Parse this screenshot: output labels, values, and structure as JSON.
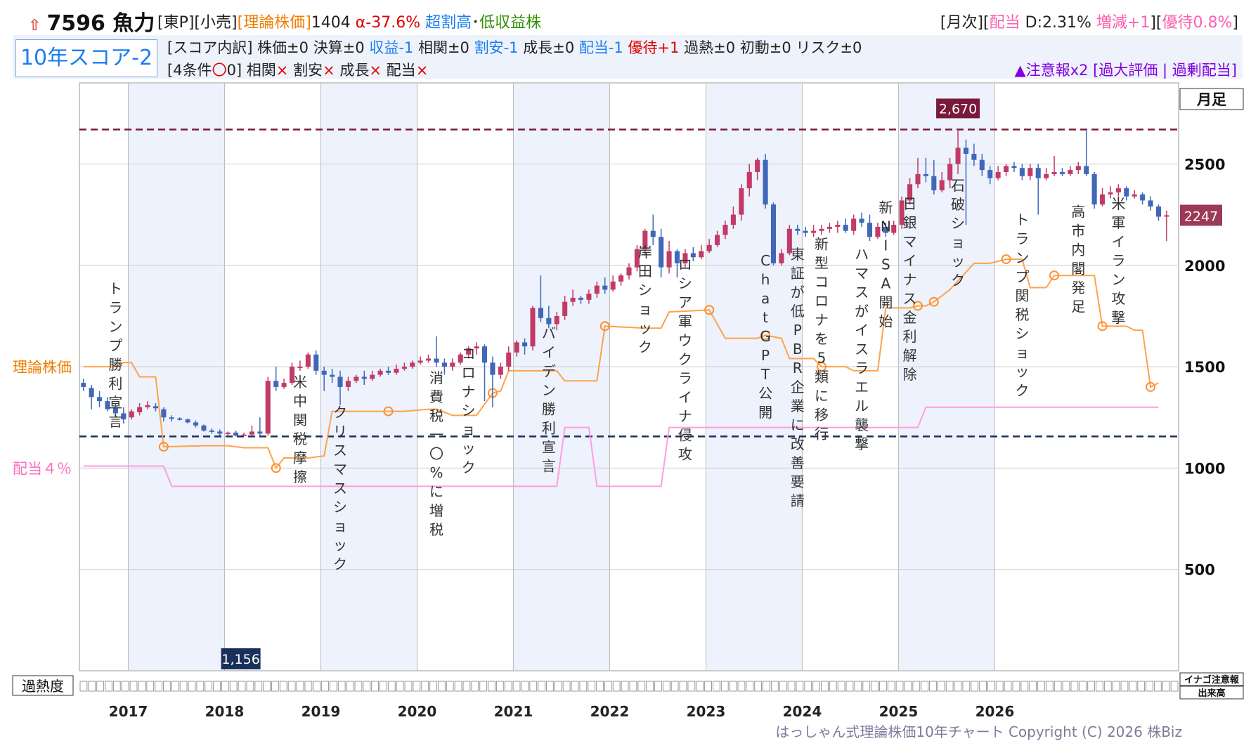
{
  "header": {
    "title": "7596 魚力",
    "arrow_icon": "up-arrow-icon",
    "market": "[東P][小売]",
    "theory_tag": "[理論株価]",
    "theory_value": "1404",
    "alpha": "α-37.6%",
    "valuation": "超割高",
    "sep": "･",
    "profit": "低収益株",
    "right_prefix": "[月次][",
    "right_div": "配当",
    "right_d": " D:2.31% ",
    "right_inc": "増減+1",
    "right_mid": "][",
    "right_yutai": "優待0.8%",
    "right_end": "]"
  },
  "score": {
    "box_label": "10年スコア-2",
    "l1_a": "[スコア内訳] 株価±0 決算±0 ",
    "l1_b": "収益-1",
    "l1_c": " 相関±0 ",
    "l1_d": "割安-1",
    "l1_e": " 成長±0 ",
    "l1_f": "配当-1",
    "l1_g": " ",
    "l1_h": "優待+1",
    "l1_i": " 過熱±0 初動±0 リスク±0",
    "l2_a": "[4条件",
    "l2_circle": "〇",
    "l2_b": "0] 相関",
    "l2_x1": "×",
    "l2_c": " 割安",
    "l2_x2": "×",
    "l2_d": " 成長",
    "l2_x3": "×",
    "l2_e": " 配当",
    "l2_x4": "×",
    "warn_a": "▲注意報x2",
    "warn_b": " [過大評価 | 過剰配当]"
  },
  "chart_data": {
    "type": "candlestick",
    "period_label": "月足",
    "x_labels": [
      "2017",
      "2018",
      "2019",
      "2020",
      "2021",
      "2022",
      "2023",
      "2024",
      "2025",
      "2026"
    ],
    "y_ticks": [
      500,
      1000,
      1500,
      2000,
      2500
    ],
    "ylim": [
      0,
      2900
    ],
    "high_label": "2,670",
    "low_label": "1,156",
    "current_label": "2247",
    "high": 2670,
    "low": 1156,
    "current": 2247,
    "left_labels": {
      "theory": "理論株価",
      "dividend": "配当４％"
    },
    "heat_label": "過熱度",
    "heat_cells": 132,
    "right_labels": [
      "イナゴ注意報",
      "出来高"
    ],
    "footer": "はっしゃん式理論株価10年チャート Copyright (C) 2026 株Biz",
    "theory_series": [
      [
        0,
        1500
      ],
      [
        4,
        1500
      ],
      [
        5,
        1520
      ],
      [
        6,
        1520
      ],
      [
        7,
        1450
      ],
      [
        9,
        1450
      ],
      [
        10,
        1105
      ],
      [
        15,
        1110
      ],
      [
        18,
        1110
      ],
      [
        20,
        1100
      ],
      [
        23,
        1100
      ],
      [
        24,
        1000
      ],
      [
        25,
        1050
      ],
      [
        28,
        1050
      ],
      [
        30,
        1060
      ],
      [
        31,
        1280
      ],
      [
        35,
        1280
      ],
      [
        38,
        1280
      ],
      [
        40,
        1280
      ],
      [
        43,
        1290
      ],
      [
        44,
        1290
      ],
      [
        46,
        1260
      ],
      [
        49,
        1260
      ],
      [
        51,
        1370
      ],
      [
        52,
        1380
      ],
      [
        53,
        1480
      ],
      [
        59,
        1480
      ],
      [
        60,
        1430
      ],
      [
        64,
        1430
      ],
      [
        65,
        1700
      ],
      [
        70,
        1690
      ],
      [
        72,
        1690
      ],
      [
        73,
        1770
      ],
      [
        78,
        1780
      ],
      [
        80,
        1640
      ],
      [
        84,
        1640
      ],
      [
        85,
        1655
      ],
      [
        87,
        1640
      ],
      [
        88,
        1540
      ],
      [
        91,
        1540
      ],
      [
        92,
        1500
      ],
      [
        95,
        1500
      ],
      [
        96,
        1480
      ],
      [
        99,
        1480
      ],
      [
        100,
        1790
      ],
      [
        103,
        1790
      ],
      [
        104,
        1800
      ],
      [
        105,
        1800
      ],
      [
        106,
        1820
      ],
      [
        108,
        1880
      ],
      [
        111,
        2010
      ],
      [
        113,
        2010
      ],
      [
        115,
        2030
      ],
      [
        117,
        2030
      ],
      [
        118,
        1890
      ],
      [
        120,
        1890
      ],
      [
        121,
        1950
      ],
      [
        123,
        1950
      ],
      [
        124,
        1950
      ],
      [
        126,
        1950
      ],
      [
        127,
        1700
      ],
      [
        130,
        1700
      ],
      [
        131,
        1680
      ],
      [
        132,
        1680
      ],
      [
        133,
        1400
      ],
      [
        134,
        1420
      ]
    ],
    "theory_markers": [
      [
        10,
        1105
      ],
      [
        24,
        1000
      ],
      [
        38,
        1280
      ],
      [
        51,
        1370
      ],
      [
        65,
        1700
      ],
      [
        78,
        1780
      ],
      [
        85,
        1655
      ],
      [
        92,
        1500
      ],
      [
        104,
        1800
      ],
      [
        106,
        1820
      ],
      [
        115,
        2030
      ],
      [
        121,
        1950
      ],
      [
        127,
        1700
      ],
      [
        133,
        1400
      ]
    ],
    "dividend_series": [
      [
        0,
        1010
      ],
      [
        10,
        1010
      ],
      [
        11,
        910
      ],
      [
        59,
        910
      ],
      [
        60,
        1200
      ],
      [
        63,
        1200
      ],
      [
        64,
        910
      ],
      [
        72,
        910
      ],
      [
        73,
        1200
      ],
      [
        104,
        1200
      ],
      [
        105,
        1300
      ],
      [
        134,
        1300
      ]
    ],
    "line_high": 2670,
    "line_low": 1156,
    "events": [
      {
        "m": 4,
        "t": "トランプ勝利宣言",
        "top": 1860
      },
      {
        "m": 27,
        "t": "米中関税摩擦",
        "top": 1400
      },
      {
        "m": 32,
        "t": "クリスマスショック",
        "top": 1250
      },
      {
        "m": 44,
        "t": "消費税一〇%に増税",
        "top": 1420
      },
      {
        "m": 48,
        "t": "コロナショック",
        "top": 1540
      },
      {
        "m": 58,
        "t": "バイデン勝利宣言",
        "top": 1640
      },
      {
        "m": 70,
        "t": "岸田ショック",
        "top": 2040
      },
      {
        "m": 75,
        "t": "ロシア軍ウクライナ侵攻",
        "top": 1980
      },
      {
        "m": 85,
        "t": "ChatGPT公開",
        "top": 2000
      },
      {
        "m": 89,
        "t": "東証が低PBR企業に改善要請",
        "top": 2030
      },
      {
        "m": 92,
        "t": "新型コロナを5類に移行",
        "top": 2080
      },
      {
        "m": 97,
        "t": "ハマスがイスラエル襲撃",
        "top": 2030
      },
      {
        "m": 100,
        "t": "新NISA開始",
        "top": 2260
      },
      {
        "m": 103,
        "t": "日銀マイナス金利解除",
        "top": 2280
      },
      {
        "m": 109,
        "t": "石破ショック",
        "top": 2370
      },
      {
        "m": 117,
        "t": "トランプ関税ショック",
        "top": 2200
      },
      {
        "m": 124,
        "t": "高市内閣発足",
        "top": 2240
      },
      {
        "m": 129,
        "t": "米軍イラン攻撃",
        "top": 2280
      }
    ],
    "ohlc": [
      [
        1420,
        1400,
        1440,
        1380
      ],
      [
        1395,
        1350,
        1410,
        1290
      ],
      [
        1350,
        1330,
        1380,
        1300
      ],
      [
        1330,
        1290,
        1350,
        1280
      ],
      [
        1300,
        1270,
        1320,
        1250
      ],
      [
        1270,
        1240,
        1300,
        1220
      ],
      [
        1250,
        1280,
        1290,
        1240
      ],
      [
        1275,
        1300,
        1320,
        1260
      ],
      [
        1300,
        1310,
        1330,
        1290
      ],
      [
        1305,
        1295,
        1320,
        1280
      ],
      [
        1290,
        1250,
        1300,
        1230
      ],
      [
        1250,
        1245,
        1260,
        1230
      ],
      [
        1245,
        1240,
        1250,
        1235
      ],
      [
        1240,
        1225,
        1245,
        1220
      ],
      [
        1225,
        1210,
        1235,
        1200
      ],
      [
        1210,
        1185,
        1215,
        1180
      ],
      [
        1185,
        1180,
        1195,
        1170
      ],
      [
        1180,
        1170,
        1190,
        1160
      ],
      [
        1170,
        1175,
        1180,
        1160
      ],
      [
        1175,
        1160,
        1185,
        1156
      ],
      [
        1160,
        1165,
        1175,
        1160
      ],
      [
        1165,
        1180,
        1210,
        1160
      ],
      [
        1180,
        1170,
        1250,
        1160
      ],
      [
        1170,
        1430,
        1450,
        1160
      ],
      [
        1430,
        1400,
        1500,
        1380
      ],
      [
        1400,
        1420,
        1440,
        1390
      ],
      [
        1420,
        1500,
        1520,
        1410
      ],
      [
        1500,
        1500,
        1530,
        1480
      ],
      [
        1500,
        1560,
        1570,
        1490
      ],
      [
        1560,
        1480,
        1580,
        1460
      ],
      [
        1480,
        1460,
        1500,
        1380
      ],
      [
        1460,
        1450,
        1490,
        1420
      ],
      [
        1450,
        1400,
        1480,
        1310
      ],
      [
        1400,
        1430,
        1450,
        1380
      ],
      [
        1430,
        1450,
        1460,
        1420
      ],
      [
        1450,
        1440,
        1480,
        1410
      ],
      [
        1440,
        1460,
        1480,
        1430
      ],
      [
        1460,
        1480,
        1490,
        1450
      ],
      [
        1480,
        1470,
        1500,
        1460
      ],
      [
        1470,
        1490,
        1510,
        1460
      ],
      [
        1490,
        1500,
        1520,
        1480
      ],
      [
        1500,
        1520,
        1530,
        1490
      ],
      [
        1520,
        1530,
        1550,
        1510
      ],
      [
        1530,
        1540,
        1560,
        1520
      ],
      [
        1540,
        1520,
        1650,
        1500
      ],
      [
        1520,
        1500,
        1540,
        1460
      ],
      [
        1500,
        1520,
        1540,
        1480
      ],
      [
        1520,
        1560,
        1570,
        1510
      ],
      [
        1560,
        1590,
        1600,
        1540
      ],
      [
        1590,
        1600,
        1620,
        1560
      ],
      [
        1600,
        1520,
        1610,
        1330
      ],
      [
        1520,
        1460,
        1550,
        1300
      ],
      [
        1460,
        1500,
        1520,
        1440
      ],
      [
        1500,
        1570,
        1600,
        1480
      ],
      [
        1570,
        1620,
        1630,
        1550
      ],
      [
        1620,
        1600,
        1640,
        1560
      ],
      [
        1600,
        1790,
        1800,
        1580
      ],
      [
        1790,
        1740,
        1950,
        1720
      ],
      [
        1740,
        1710,
        1800,
        1690
      ],
      [
        1710,
        1750,
        1770,
        1680
      ],
      [
        1750,
        1820,
        1850,
        1730
      ],
      [
        1820,
        1840,
        1880,
        1800
      ],
      [
        1840,
        1830,
        1850,
        1810
      ],
      [
        1830,
        1860,
        1880,
        1810
      ],
      [
        1860,
        1900,
        1920,
        1840
      ],
      [
        1900,
        1880,
        1940,
        1860
      ],
      [
        1880,
        1920,
        1950,
        1870
      ],
      [
        1920,
        1950,
        1960,
        1900
      ],
      [
        1950,
        1990,
        2010,
        1930
      ],
      [
        1990,
        2080,
        2100,
        1970
      ],
      [
        2080,
        2170,
        2180,
        2050
      ],
      [
        2170,
        2140,
        2250,
        2100
      ],
      [
        2140,
        1990,
        2180,
        1940
      ],
      [
        1990,
        2070,
        2120,
        1960
      ],
      [
        2070,
        2010,
        2080,
        1940
      ],
      [
        2010,
        2060,
        2080,
        1990
      ],
      [
        2060,
        2040,
        2090,
        2020
      ],
      [
        2040,
        2070,
        2100,
        2030
      ],
      [
        2070,
        2100,
        2130,
        2060
      ],
      [
        2100,
        2150,
        2170,
        2090
      ],
      [
        2150,
        2200,
        2220,
        2130
      ],
      [
        2200,
        2250,
        2290,
        2180
      ],
      [
        2250,
        2380,
        2400,
        2220
      ],
      [
        2380,
        2460,
        2500,
        2340
      ],
      [
        2460,
        2520,
        2530,
        2420
      ],
      [
        2520,
        2300,
        2550,
        2280
      ],
      [
        2300,
        2010,
        2310,
        2000
      ],
      [
        2010,
        2060,
        2080,
        2000
      ],
      [
        2060,
        2180,
        2200,
        2050
      ],
      [
        2180,
        2170,
        2200,
        2150
      ],
      [
        2170,
        2160,
        2190,
        2140
      ],
      [
        2160,
        2170,
        2200,
        2140
      ],
      [
        2170,
        2180,
        2200,
        2150
      ],
      [
        2180,
        2190,
        2210,
        2160
      ],
      [
        2190,
        2200,
        2220,
        2160
      ],
      [
        2200,
        2170,
        2230,
        2160
      ],
      [
        2170,
        2230,
        2250,
        2150
      ],
      [
        2230,
        2210,
        2260,
        2190
      ],
      [
        2210,
        2140,
        2250,
        2120
      ],
      [
        2140,
        2190,
        2210,
        2130
      ],
      [
        2190,
        2160,
        2210,
        2140
      ],
      [
        2160,
        2200,
        2220,
        2150
      ],
      [
        2200,
        2320,
        2340,
        2180
      ],
      [
        2320,
        2400,
        2430,
        2300
      ],
      [
        2400,
        2450,
        2530,
        2380
      ],
      [
        2450,
        2440,
        2530,
        2410
      ],
      [
        2440,
        2370,
        2520,
        2350
      ],
      [
        2370,
        2420,
        2460,
        2360
      ],
      [
        2420,
        2500,
        2530,
        2380
      ],
      [
        2500,
        2580,
        2670,
        2450
      ],
      [
        2580,
        2550,
        2620,
        2200
      ],
      [
        2550,
        2520,
        2600,
        2490
      ],
      [
        2520,
        2470,
        2550,
        2440
      ],
      [
        2470,
        2430,
        2490,
        2400
      ],
      [
        2430,
        2460,
        2490,
        2420
      ],
      [
        2460,
        2490,
        2500,
        2440
      ],
      [
        2490,
        2480,
        2510,
        2460
      ],
      [
        2480,
        2440,
        2500,
        2420
      ],
      [
        2440,
        2480,
        2500,
        2420
      ],
      [
        2480,
        2430,
        2500,
        2250
      ],
      [
        2430,
        2450,
        2480,
        2420
      ],
      [
        2450,
        2460,
        2540,
        2440
      ],
      [
        2460,
        2450,
        2480,
        2440
      ],
      [
        2450,
        2470,
        2490,
        2440
      ],
      [
        2470,
        2490,
        2510,
        2450
      ],
      [
        2490,
        2450,
        2670,
        2440
      ],
      [
        2450,
        2300,
        2460,
        2280
      ],
      [
        2300,
        2350,
        2380,
        2290
      ],
      [
        2350,
        2360,
        2390,
        2330
      ],
      [
        2360,
        2380,
        2400,
        2340
      ],
      [
        2380,
        2340,
        2390,
        2320
      ],
      [
        2340,
        2350,
        2370,
        2330
      ],
      [
        2350,
        2320,
        2360,
        2300
      ],
      [
        2320,
        2290,
        2340,
        2270
      ],
      [
        2290,
        2240,
        2300,
        2220
      ],
      [
        2240,
        2247,
        2270,
        2120
      ]
    ]
  }
}
